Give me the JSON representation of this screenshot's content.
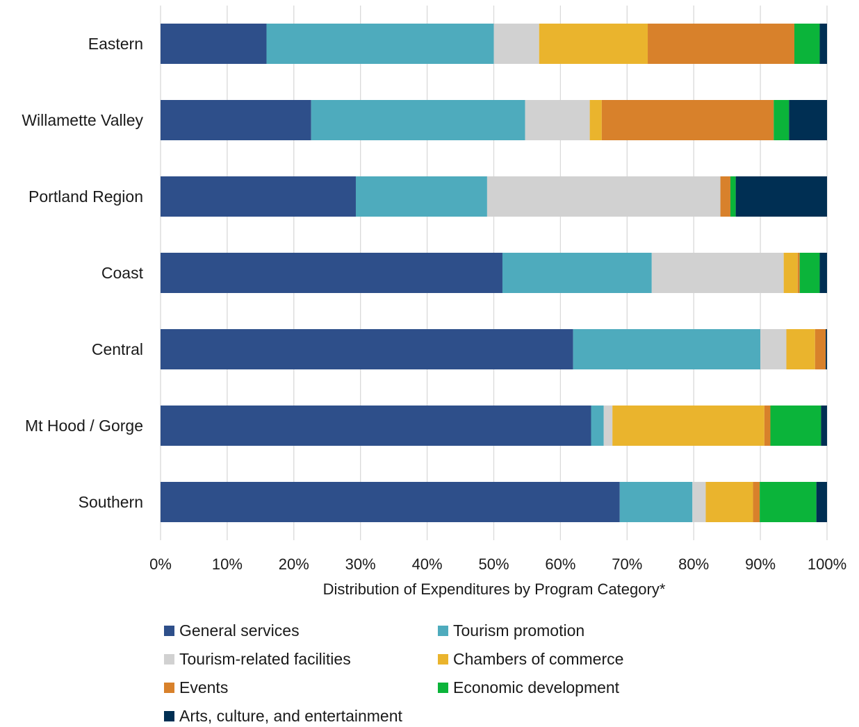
{
  "chart_data": {
    "type": "bar",
    "orientation": "horizontal",
    "stacked": "percent",
    "xlabel": "Distribution of Expenditures by Program Category*",
    "ylabel": "",
    "xlim": [
      0,
      100
    ],
    "xticks": [
      "0%",
      "10%",
      "20%",
      "30%",
      "40%",
      "50%",
      "60%",
      "70%",
      "80%",
      "90%",
      "100%"
    ],
    "grid": "vertical",
    "legend": "bottom",
    "categories": [
      "Eastern",
      "Willamette Valley",
      "Portland Region",
      "Coast",
      "Central",
      "Mt Hood / Gorge",
      "Southern"
    ],
    "series": [
      {
        "name": "General services",
        "color": "#2e4f8a",
        "values": [
          15.9,
          22.6,
          29.3,
          51.3,
          61.9,
          64.6,
          68.9
        ]
      },
      {
        "name": "Tourism promotion",
        "color": "#4eabbd",
        "values": [
          34.1,
          32.1,
          19.7,
          22.4,
          28.1,
          1.9,
          10.9
        ]
      },
      {
        "name": "Tourism-related facilities",
        "color": "#d1d1d1",
        "values": [
          6.8,
          9.7,
          35.0,
          19.8,
          3.9,
          1.3,
          2.0
        ]
      },
      {
        "name": "Chambers of commerce",
        "color": "#eab42d",
        "values": [
          16.3,
          1.8,
          0.0,
          2.1,
          4.3,
          22.8,
          7.1
        ]
      },
      {
        "name": "Events",
        "color": "#d8812b",
        "values": [
          22.0,
          25.8,
          1.5,
          0.3,
          1.6,
          0.9,
          1.0
        ]
      },
      {
        "name": "Economic development",
        "color": "#0bb43a",
        "values": [
          3.8,
          2.3,
          0.8,
          3.0,
          0.0,
          7.6,
          8.5
        ]
      },
      {
        "name": "Arts, culture, and entertainment",
        "color": "#002f53",
        "values": [
          1.1,
          5.7,
          13.7,
          1.1,
          0.2,
          0.9,
          1.6
        ]
      }
    ]
  }
}
